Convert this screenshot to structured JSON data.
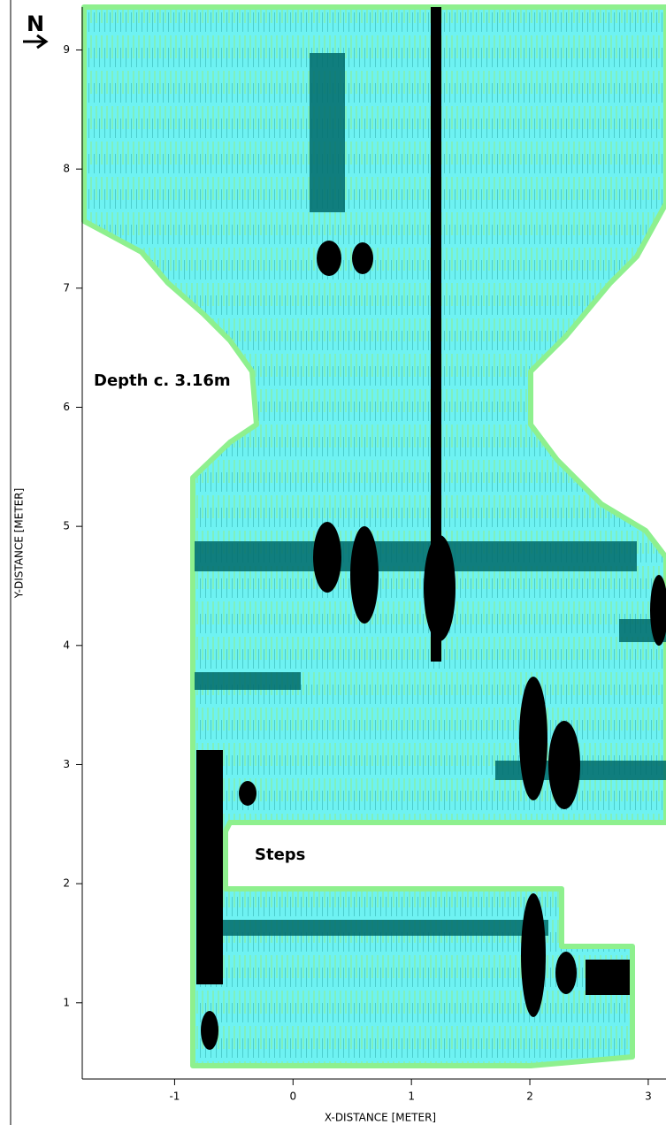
{
  "north_label": "N",
  "chart_data": {
    "type": "image",
    "xlabel": "X-DISTANCE [METER]",
    "ylabel": "Y-DISTANCE [METER]",
    "annotations": [
      "Depth c. 3.16m",
      "Steps"
    ],
    "xlim": [
      -1.78,
      3.15
    ],
    "ylim": [
      0.36,
      9.36
    ],
    "xticks": [
      -1,
      0,
      1,
      2,
      3
    ],
    "yticks": [
      1,
      2,
      3,
      4,
      5,
      6,
      7,
      8,
      9
    ]
  }
}
